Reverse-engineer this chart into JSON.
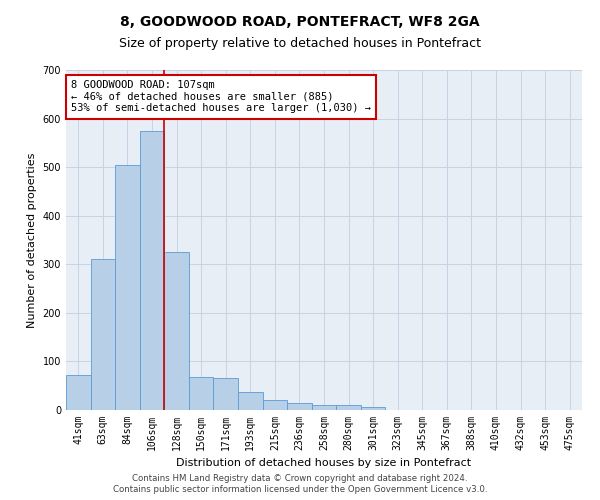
{
  "title": "8, GOODWOOD ROAD, PONTEFRACT, WF8 2GA",
  "subtitle": "Size of property relative to detached houses in Pontefract",
  "xlabel": "Distribution of detached houses by size in Pontefract",
  "ylabel": "Number of detached properties",
  "footer_line1": "Contains HM Land Registry data © Crown copyright and database right 2024.",
  "footer_line2": "Contains public sector information licensed under the Open Government Licence v3.0.",
  "bar_labels": [
    "41sqm",
    "63sqm",
    "84sqm",
    "106sqm",
    "128sqm",
    "150sqm",
    "171sqm",
    "193sqm",
    "215sqm",
    "236sqm",
    "258sqm",
    "280sqm",
    "301sqm",
    "323sqm",
    "345sqm",
    "367sqm",
    "388sqm",
    "410sqm",
    "432sqm",
    "453sqm",
    "475sqm"
  ],
  "bar_values": [
    72,
    310,
    505,
    575,
    325,
    67,
    65,
    37,
    20,
    15,
    11,
    10,
    7,
    0,
    0,
    0,
    0,
    0,
    0,
    0,
    0
  ],
  "bar_color": "#b8cfe8",
  "bar_edge_color": "#5b9bd5",
  "ylim": [
    0,
    700
  ],
  "yticks": [
    0,
    100,
    200,
    300,
    400,
    500,
    600,
    700
  ],
  "property_bar_index": 3,
  "vline_color": "#cc0000",
  "annotation_text": "8 GOODWOOD ROAD: 107sqm\n← 46% of detached houses are smaller (885)\n53% of semi-detached houses are larger (1,030) →",
  "annotation_box_color": "#ffffff",
  "annotation_box_edge": "#cc0000",
  "background_color": "#ffffff",
  "plot_bg_color": "#e8eef5",
  "grid_color": "#c8d4e4",
  "title_fontsize": 10,
  "subtitle_fontsize": 9,
  "axis_label_fontsize": 8,
  "tick_fontsize": 7,
  "annotation_fontsize": 7.5
}
